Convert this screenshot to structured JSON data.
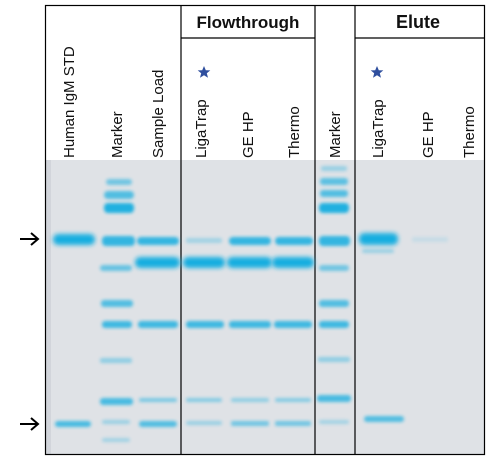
{
  "headers": {
    "flowthrough": "Flowthrough",
    "elute": "Elute"
  },
  "lanes": [
    {
      "label": "Human IgM STD"
    },
    {
      "label": "Marker"
    },
    {
      "label": "Sample Load"
    },
    {
      "label": "LigaTrap",
      "starred": true
    },
    {
      "label": "GE HP"
    },
    {
      "label": "Thermo"
    },
    {
      "label": "Marker"
    },
    {
      "label": "LigaTrap",
      "starred": true
    },
    {
      "label": "GE HP"
    },
    {
      "label": "Thermo"
    }
  ],
  "arrows": [
    "heavy-chain-arrow",
    "light-chain-arrow"
  ],
  "colors": {
    "gel": "#dfe2e6",
    "band": "#19aee0",
    "star": "#2f4f9e",
    "border": "#000000"
  }
}
